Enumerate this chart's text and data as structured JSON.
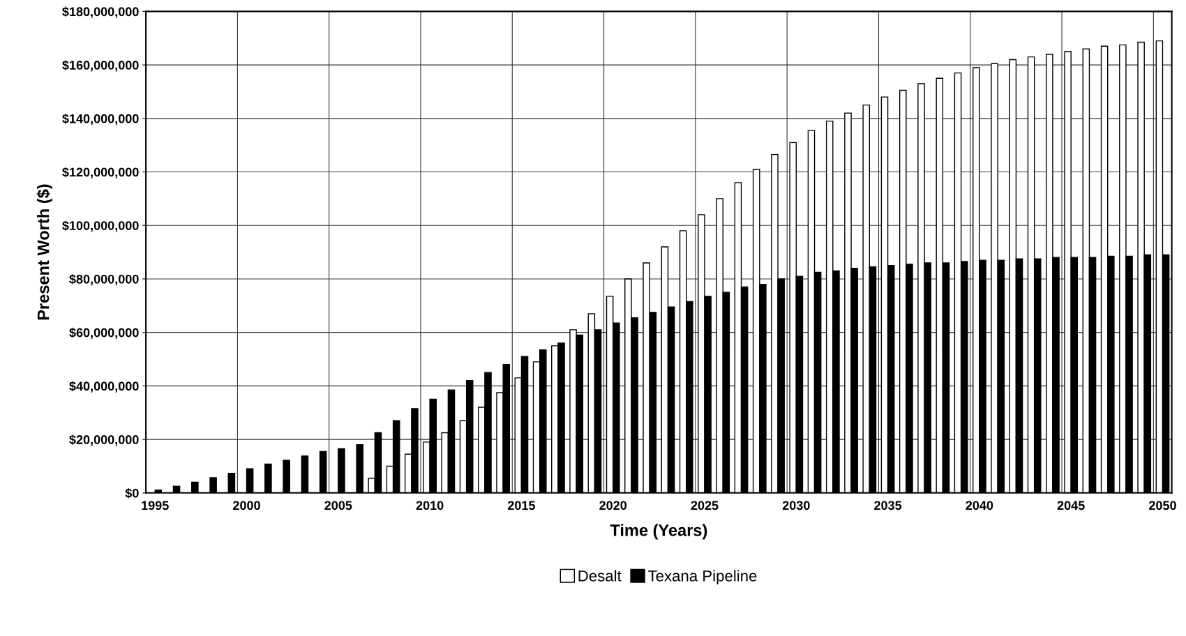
{
  "chart_data": {
    "type": "bar",
    "xlabel": "Time (Years)",
    "ylabel": "Present Worth ($)",
    "categories": [
      "1995",
      null,
      null,
      null,
      null,
      "2000",
      null,
      null,
      null,
      null,
      "2005",
      null,
      null,
      null,
      null,
      "2010",
      null,
      null,
      null,
      null,
      "2015",
      null,
      null,
      null,
      null,
      "2020",
      null,
      null,
      null,
      null,
      "2025",
      null,
      null,
      null,
      null,
      "2030",
      null,
      null,
      null,
      null,
      "2035",
      null,
      null,
      null,
      null,
      "2040",
      null,
      null,
      null,
      null,
      "2045",
      null,
      null,
      null,
      null,
      "2050"
    ],
    "series": [
      {
        "name": "Desalt",
        "color": "#ffffff",
        "values": [
          null,
          null,
          null,
          null,
          null,
          null,
          null,
          null,
          null,
          null,
          null,
          null,
          5500000,
          10000000,
          14500000,
          19000000,
          22500000,
          27000000,
          32000000,
          37500000,
          43000000,
          49000000,
          55000000,
          61000000,
          67000000,
          73500000,
          80000000,
          86000000,
          92000000,
          98000000,
          104000000,
          110000000,
          116000000,
          121000000,
          126500000,
          131000000,
          135500000,
          139000000,
          142000000,
          145000000,
          148000000,
          150500000,
          153000000,
          155000000,
          157000000,
          159000000,
          160500000,
          162000000,
          163000000,
          164000000,
          165000000,
          166000000,
          167000000,
          167500000,
          168500000,
          169000000
        ]
      },
      {
        "name": "Texana Pipeline",
        "color": "#000000",
        "values": [
          1100000,
          2500000,
          4000000,
          5700000,
          7300000,
          9000000,
          10800000,
          12200000,
          13800000,
          15500000,
          16500000,
          18000000,
          22500000,
          27000000,
          31500000,
          35000000,
          38500000,
          42000000,
          45000000,
          48000000,
          51000000,
          53500000,
          56000000,
          59000000,
          61000000,
          63500000,
          65500000,
          67500000,
          69500000,
          71500000,
          73500000,
          75000000,
          77000000,
          78000000,
          80000000,
          81000000,
          82500000,
          83000000,
          84000000,
          84500000,
          85000000,
          85500000,
          86000000,
          86000000,
          86500000,
          87000000,
          87000000,
          87500000,
          87500000,
          88000000,
          88000000,
          88000000,
          88500000,
          88500000,
          89000000,
          89000000
        ]
      }
    ],
    "ylim": [
      0,
      180000000
    ],
    "yticks": [
      {
        "value": 0,
        "label": "$0"
      },
      {
        "value": 20000000,
        "label": "$20,000,000"
      },
      {
        "value": 40000000,
        "label": "$40,000,000"
      },
      {
        "value": 60000000,
        "label": "$60,000,000"
      },
      {
        "value": 80000000,
        "label": "$80,000,000"
      },
      {
        "value": 100000000,
        "label": "$100,000,000"
      },
      {
        "value": 120000000,
        "label": "$120,000,000"
      },
      {
        "value": 140000000,
        "label": "$140,000,000"
      },
      {
        "value": 160000000,
        "label": "$160,000,000"
      },
      {
        "value": 180000000,
        "label": "$180,000,000"
      }
    ],
    "grid": true,
    "legend": "bottom"
  }
}
